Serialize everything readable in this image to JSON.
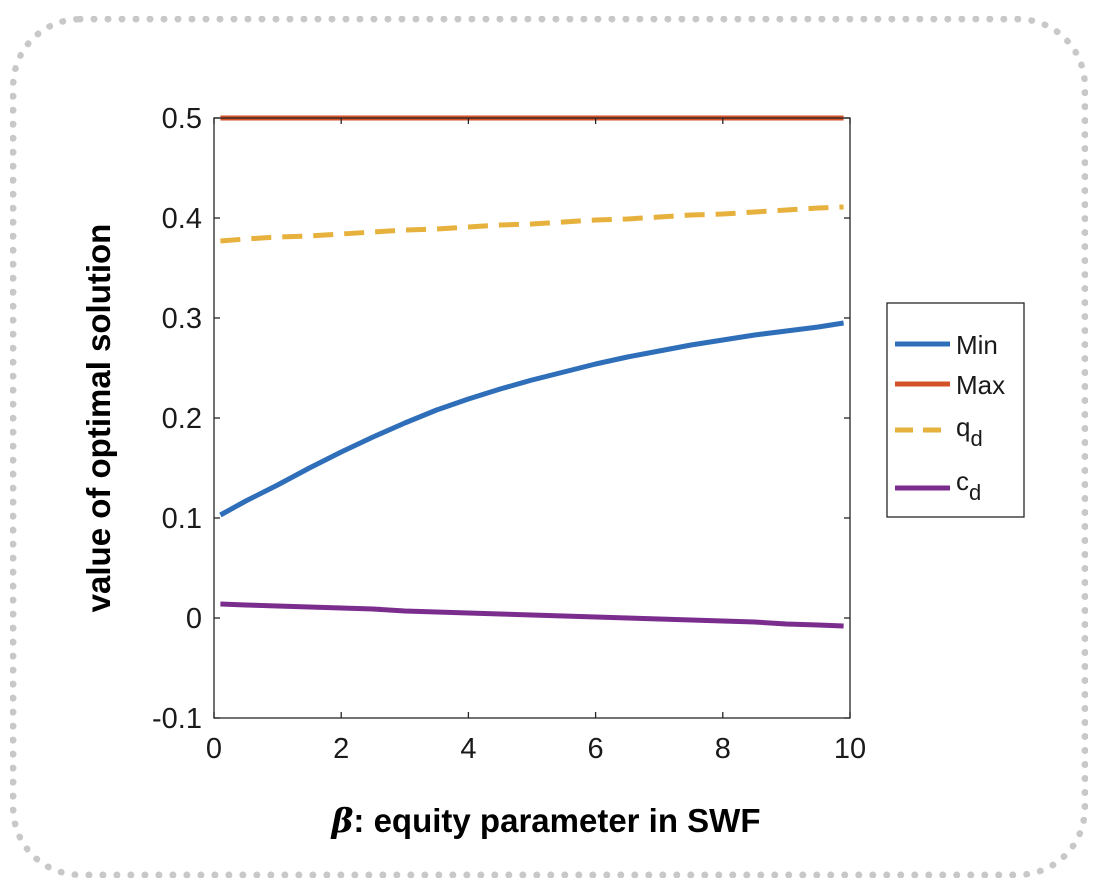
{
  "chart_data": {
    "type": "line",
    "title": "",
    "xlabel_symbol": "β",
    "xlabel_text": ": equity parameter in SWF",
    "ylabel": "value of optimal solution",
    "xlim": [
      0,
      10
    ],
    "ylim": [
      -0.1,
      0.5
    ],
    "xticks": [
      0,
      2,
      4,
      6,
      8,
      10
    ],
    "xtick_labels": [
      "0",
      "2",
      "4",
      "6",
      "8",
      "10"
    ],
    "yticks": [
      -0.1,
      0,
      0.1,
      0.2,
      0.3,
      0.4,
      0.5
    ],
    "ytick_labels": [
      "-0.1",
      "0",
      "0.1",
      "0.2",
      "0.3",
      "0.4",
      "0.5"
    ],
    "grid": false,
    "legend_position": "outside-right",
    "x": [
      0.1,
      0.5,
      1,
      1.5,
      2,
      2.5,
      3,
      3.5,
      4,
      4.5,
      5,
      5.5,
      6,
      6.5,
      7,
      7.5,
      8,
      8.5,
      9,
      9.5,
      9.9
    ],
    "series": [
      {
        "name": "Min",
        "color": "#2F6FBA",
        "dash": "solid",
        "values": [
          0.103,
          0.117,
          0.133,
          0.15,
          0.166,
          0.181,
          0.195,
          0.208,
          0.219,
          0.229,
          0.238,
          0.246,
          0.254,
          0.261,
          0.267,
          0.273,
          0.278,
          0.283,
          0.287,
          0.291,
          0.295
        ]
      },
      {
        "name": "Max",
        "color": "#D4522A",
        "dash": "solid",
        "values": [
          0.5,
          0.5,
          0.5,
          0.5,
          0.5,
          0.5,
          0.5,
          0.5,
          0.5,
          0.5,
          0.5,
          0.5,
          0.5,
          0.5,
          0.5,
          0.5,
          0.5,
          0.5,
          0.5,
          0.5,
          0.5
        ]
      },
      {
        "name_main": "q",
        "name_sub": "d",
        "color": "#E6B13C",
        "dash": "dashed",
        "values": [
          0.377,
          0.379,
          0.381,
          0.382,
          0.384,
          0.386,
          0.388,
          0.389,
          0.391,
          0.393,
          0.394,
          0.396,
          0.398,
          0.399,
          0.401,
          0.403,
          0.404,
          0.406,
          0.408,
          0.41,
          0.411
        ]
      },
      {
        "name_main": "c",
        "name_sub": "d",
        "color": "#7B2D8E",
        "dash": "solid",
        "values": [
          0.014,
          0.013,
          0.012,
          0.011,
          0.01,
          0.009,
          0.007,
          0.006,
          0.005,
          0.004,
          0.003,
          0.002,
          0.001,
          0.0,
          -0.001,
          -0.002,
          -0.003,
          -0.004,
          -0.006,
          -0.007,
          -0.008
        ]
      }
    ]
  }
}
